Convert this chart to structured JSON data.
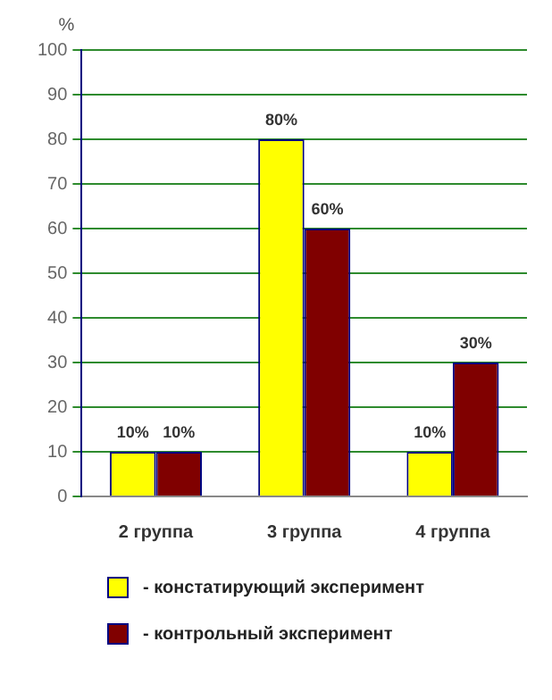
{
  "chart_data": {
    "type": "bar",
    "ylabel": "%",
    "categories": [
      "2 группа",
      "3 группа",
      "4 группа"
    ],
    "series": [
      {
        "name": "- констатирующий эксперимент",
        "color": "#ffff00",
        "values": [
          10,
          80,
          10
        ],
        "value_labels": [
          "10%",
          "80%",
          "10%"
        ]
      },
      {
        "name": "- контрольный эксперимент",
        "color": "#800000",
        "values": [
          10,
          60,
          30
        ],
        "value_labels": [
          "10%",
          "60%",
          "30%"
        ]
      }
    ],
    "ylim": [
      0,
      100
    ],
    "yticks": [
      0,
      10,
      20,
      30,
      40,
      50,
      60,
      70,
      80,
      90,
      100
    ],
    "grid": "y",
    "legend": "bottom"
  }
}
